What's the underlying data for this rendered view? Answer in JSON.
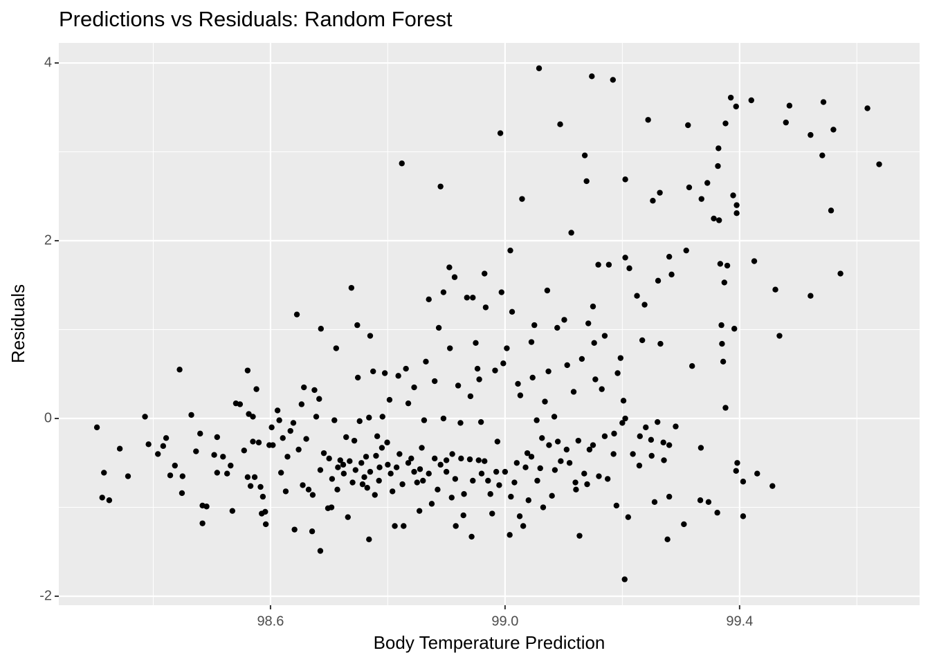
{
  "chart_data": {
    "type": "scatter",
    "title": "Predictions vs Residuals: Random Forest",
    "x_label": "Body Temperature Prediction",
    "y_label": "Residuals",
    "color": "#000000",
    "grid": true,
    "xlim": [
      98.239,
      99.707
    ],
    "ylim": [
      -2.101,
      4.226
    ],
    "xticks": [
      98.6,
      {
        "value": 99,
        "label": "99.0"
      },
      99.4
    ],
    "yticks": [
      -2,
      0,
      2,
      4
    ],
    "x": [
      98.304,
      98.316,
      98.313,
      98.325,
      98.343,
      98.357,
      98.386,
      98.392,
      98.408,
      98.417,
      98.422,
      98.429,
      98.437,
      98.445,
      98.45,
      98.449,
      98.465,
      98.473,
      98.48,
      98.484,
      98.491,
      98.484,
      98.504,
      98.509,
      98.509,
      98.519,
      98.526,
      98.532,
      98.535,
      98.541,
      98.548,
      98.555,
      98.561,
      98.561,
      98.563,
      98.566,
      98.57,
      98.57,
      98.573,
      98.576,
      98.58,
      98.583,
      98.585,
      98.587,
      98.592,
      98.591,
      98.598,
      98.602,
      98.604,
      98.612,
      98.615,
      98.618,
      98.621,
      98.626,
      98.629,
      98.634,
      98.639,
      98.641,
      98.645,
      98.648,
      98.653,
      98.655,
      98.657,
      98.661,
      98.665,
      98.671,
      98.672,
      98.675,
      98.678,
      98.683,
      98.685,
      98.686,
      98.685,
      98.691,
      98.698,
      98.704,
      98.709,
      98.712,
      98.714,
      98.719,
      98.724,
      98.729,
      98.732,
      98.738,
      98.743,
      98.748,
      98.749,
      98.752,
      98.757,
      98.763,
      98.768,
      98.77,
      98.768,
      98.775,
      98.778,
      98.782,
      98.786,
      98.791,
      98.795,
      98.799,
      98.803,
      98.808,
      98.812,
      98.818,
      98.824,
      98.827,
      98.831,
      98.835,
      98.84,
      98.845,
      98.85,
      98.854,
      98.858,
      98.862,
      98.865,
      98.87,
      98.875,
      98.88,
      98.887,
      98.89,
      98.895,
      98.895,
      98.9,
      98.905,
      98.906,
      98.909,
      98.914,
      98.916,
      98.92,
      98.924,
      98.929,
      98.935,
      98.941,
      98.945,
      98.943,
      98.95,
      98.953,
      98.956,
      98.959,
      98.965,
      98.967,
      98.971,
      98.978,
      98.983,
      98.987,
      98.992,
      98.994,
      98.997,
      99.003,
      99.008,
      99.009,
      99.012,
      99.016,
      99.022,
      99.029,
      99.026,
      99.031,
      99.038,
      99.045,
      99.047,
      99.05,
      99.054,
      99.058,
      99.063,
      99.068,
      99.072,
      99.074,
      99.08,
      99.084,
      99.089,
      99.094,
      99.101,
      99.106,
      99.113,
      99.117,
      99.121,
      99.127,
      99.131,
      99.136,
      99.139,
      99.142,
      99.144,
      99.148,
      99.15,
      99.152,
      99.154,
      99.159,
      99.165,
      99.17,
      99.177,
      99.184,
      99.186,
      99.192,
      99.197,
      99.202,
      99.204,
      99.205,
      99.205,
      99.21,
      99.212,
      99.218,
      99.225,
      99.229,
      99.234,
      99.238,
      99.244,
      99.249,
      99.252,
      99.255,
      99.261,
      99.264,
      99.265,
      99.271,
      99.277,
      99.28,
      99.28,
      99.284,
      99.291,
      99.305,
      99.309,
      99.312,
      99.314,
      99.319,
      99.334,
      99.333,
      99.335,
      99.345,
      99.347,
      99.356,
      99.362,
      99.363,
      99.364,
      99.365,
      99.367,
      99.369,
      99.37,
      99.372,
      99.374,
      99.376,
      99.376,
      99.379,
      99.385,
      99.389,
      99.391,
      99.394,
      99.395,
      99.395,
      99.396,
      99.394,
      99.406,
      99.406,
      99.42,
      99.425,
      99.43,
      99.456,
      99.461,
      99.468,
      99.479,
      99.485,
      99.521,
      99.521,
      99.541,
      99.543,
      99.556,
      99.56,
      99.572,
      99.618,
      99.638,
      98.7,
      98.705,
      98.715,
      98.725,
      98.735,
      98.74,
      98.745,
      98.755,
      98.76,
      98.765,
      98.77,
      98.78,
      98.785,
      98.79,
      98.8,
      98.805,
      98.815,
      98.82,
      98.825,
      98.835,
      98.845,
      98.855,
      98.86,
      98.87,
      98.88,
      98.885,
      98.89,
      98.9,
      98.91,
      98.915,
      98.925,
      98.93,
      98.94,
      98.945,
      98.955,
      98.96,
      98.965,
      98.975,
      98.985,
      98.99,
      99.0,
      99.01,
      99.02,
      99.025,
      99.035,
      99.04,
      99.045,
      99.055,
      99.06,
      99.065,
      99.075,
      99.085,
      99.09,
      99.095,
      99.105,
      99.11,
      99.12,
      99.125,
      99.135,
      99.14,
      99.15,
      99.16,
      99.17,
      99.175,
      99.185,
      99.19,
      99.2,
      99.205,
      99.23,
      99.24,
      99.25,
      99.26,
      99.27,
      99.28
    ],
    "y": [
      -0.1,
      -0.61,
      -0.89,
      -0.92,
      -0.34,
      -0.65,
      0.02,
      -0.29,
      -0.4,
      -0.31,
      -0.22,
      -0.64,
      -0.53,
      0.55,
      -0.65,
      -0.84,
      0.04,
      -0.37,
      -0.17,
      -0.98,
      -0.99,
      -1.18,
      -0.41,
      -0.21,
      -0.61,
      -0.43,
      -0.62,
      -0.53,
      -1.04,
      0.17,
      0.16,
      -0.36,
      0.54,
      -0.66,
      0.05,
      -0.76,
      -0.26,
      0.02,
      -0.66,
      0.33,
      -0.27,
      -0.77,
      -1.07,
      -0.88,
      -1.19,
      -1.05,
      -0.3,
      -0.1,
      -0.3,
      0.09,
      -0.02,
      -0.61,
      -0.22,
      -0.82,
      -0.43,
      -0.14,
      -0.05,
      -1.25,
      1.17,
      -0.35,
      0.16,
      -0.75,
      0.35,
      -0.23,
      -0.8,
      -1.27,
      -0.86,
      0.32,
      0.02,
      0.22,
      -1.49,
      1.01,
      -0.58,
      -0.39,
      -1.01,
      -1.0,
      -0.02,
      0.79,
      -0.8,
      -0.47,
      -0.52,
      -0.21,
      -1.11,
      1.47,
      -0.25,
      1.05,
      0.46,
      -0.03,
      -0.74,
      -0.43,
      0.01,
      0.93,
      -1.36,
      0.53,
      -0.86,
      -0.2,
      -0.55,
      0.02,
      0.51,
      -0.27,
      0.21,
      -0.82,
      -1.21,
      0.48,
      2.87,
      -1.21,
      0.56,
      0.17,
      -0.45,
      0.35,
      -0.72,
      -1.04,
      -0.33,
      -0.02,
      0.64,
      1.34,
      -0.96,
      0.42,
      1.02,
      2.61,
      1.42,
      0.0,
      -0.47,
      1.7,
      0.79,
      -0.89,
      1.59,
      -1.21,
      0.37,
      -0.05,
      -1.09,
      1.36,
      0.25,
      1.36,
      -1.33,
      0.85,
      0.56,
      0.44,
      -0.04,
      1.63,
      1.25,
      -0.7,
      -1.07,
      0.54,
      -0.26,
      3.21,
      1.42,
      0.62,
      0.79,
      -1.31,
      1.89,
      1.2,
      -0.72,
      0.39,
      2.47,
      0.26,
      -1.21,
      -0.39,
      0.86,
      0.46,
      1.05,
      -0.02,
      3.94,
      -0.22,
      0.19,
      1.44,
      0.53,
      -0.87,
      0.02,
      1.02,
      3.31,
      1.11,
      0.6,
      2.09,
      0.3,
      -0.8,
      -1.32,
      0.67,
      2.96,
      2.67,
      1.07,
      -0.35,
      3.85,
      1.26,
      0.85,
      0.44,
      1.73,
      0.33,
      0.93,
      1.73,
      3.81,
      -0.17,
      0.51,
      0.68,
      0.2,
      -1.81,
      2.69,
      1.81,
      -1.11,
      1.69,
      -0.4,
      1.38,
      -0.53,
      0.88,
      1.28,
      3.36,
      -0.24,
      2.45,
      -0.94,
      1.55,
      2.54,
      0.84,
      -0.47,
      -1.36,
      -0.88,
      1.82,
      1.62,
      -0.09,
      -1.19,
      1.89,
      3.3,
      2.6,
      0.59,
      -0.33,
      -0.92,
      2.47,
      2.65,
      -0.94,
      2.25,
      -1.06,
      2.84,
      3.04,
      2.23,
      1.74,
      1.05,
      0.84,
      0.64,
      1.53,
      3.32,
      0.12,
      1.72,
      3.61,
      2.51,
      1.01,
      3.51,
      2.4,
      2.31,
      -0.5,
      -0.59,
      -0.71,
      -1.1,
      3.58,
      1.77,
      -0.62,
      -0.76,
      1.45,
      0.93,
      3.33,
      3.52,
      3.19,
      1.38,
      2.96,
      3.56,
      2.34,
      3.25,
      1.63,
      3.49,
      2.86,
      -0.45,
      -0.68,
      -0.55,
      -0.62,
      -0.48,
      -0.72,
      -0.58,
      -0.5,
      -0.66,
      -0.78,
      -0.6,
      -0.42,
      -0.7,
      -0.33,
      -0.52,
      -0.62,
      -0.55,
      -0.4,
      -0.74,
      -0.5,
      -0.6,
      -0.57,
      -0.7,
      -0.62,
      -0.45,
      -0.8,
      -0.52,
      -0.6,
      -0.4,
      -0.68,
      -0.45,
      -0.85,
      -0.46,
      -0.7,
      -0.47,
      -0.62,
      -0.48,
      -0.85,
      -0.6,
      -0.75,
      -0.6,
      -0.88,
      -0.5,
      -1.1,
      -0.55,
      -0.92,
      -0.43,
      -0.7,
      -0.56,
      -1.0,
      -0.3,
      -0.58,
      -0.26,
      -0.48,
      -0.35,
      -0.5,
      -0.72,
      -0.25,
      -0.62,
      -0.74,
      -0.3,
      -0.65,
      -0.2,
      -0.68,
      -0.4,
      -0.98,
      -0.05,
      0.0,
      -0.2,
      -0.1,
      -0.42,
      -0.04,
      -0.27,
      -0.3
    ]
  }
}
